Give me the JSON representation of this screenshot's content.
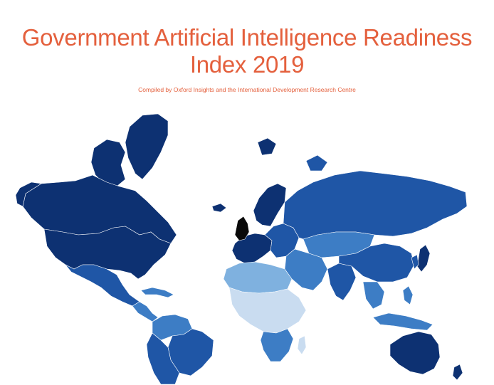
{
  "header": {
    "title_line1": "Government Artificial Intelligence Readiness",
    "title_line2": "Index 2019",
    "subtitle": "Compiled by Oxford Insights and the International Development Research Centre"
  },
  "legend_colors": {
    "highest": "#0d3172",
    "high": "#1f56a6",
    "mid": "#3d7dc5",
    "low": "#7fb1df",
    "lowest": "#c9dcf0",
    "top_ranked": "#0a0a0a"
  },
  "regions": [
    {
      "name": "Greenland",
      "level": "highest"
    },
    {
      "name": "Canada",
      "level": "highest"
    },
    {
      "name": "United States",
      "level": "highest"
    },
    {
      "name": "Mexico",
      "level": "high"
    },
    {
      "name": "Central America",
      "level": "mid"
    },
    {
      "name": "South America North",
      "level": "mid"
    },
    {
      "name": "Brazil",
      "level": "high"
    },
    {
      "name": "Southern Cone",
      "level": "high"
    },
    {
      "name": "United Kingdom",
      "level": "top_ranked"
    },
    {
      "name": "Western Europe",
      "level": "highest"
    },
    {
      "name": "Scandinavia",
      "level": "highest"
    },
    {
      "name": "Eastern Europe",
      "level": "high"
    },
    {
      "name": "Russia",
      "level": "high"
    },
    {
      "name": "Central Asia",
      "level": "mid"
    },
    {
      "name": "Middle East",
      "level": "mid"
    },
    {
      "name": "North Africa",
      "level": "low"
    },
    {
      "name": "Sub-Saharan Africa",
      "level": "lowest"
    },
    {
      "name": "Southern Africa",
      "level": "mid"
    },
    {
      "name": "India",
      "level": "high"
    },
    {
      "name": "China",
      "level": "high"
    },
    {
      "name": "Japan",
      "level": "highest"
    },
    {
      "name": "Southeast Asia",
      "level": "mid"
    },
    {
      "name": "Australia",
      "level": "highest"
    },
    {
      "name": "New Zealand",
      "level": "highest"
    }
  ]
}
